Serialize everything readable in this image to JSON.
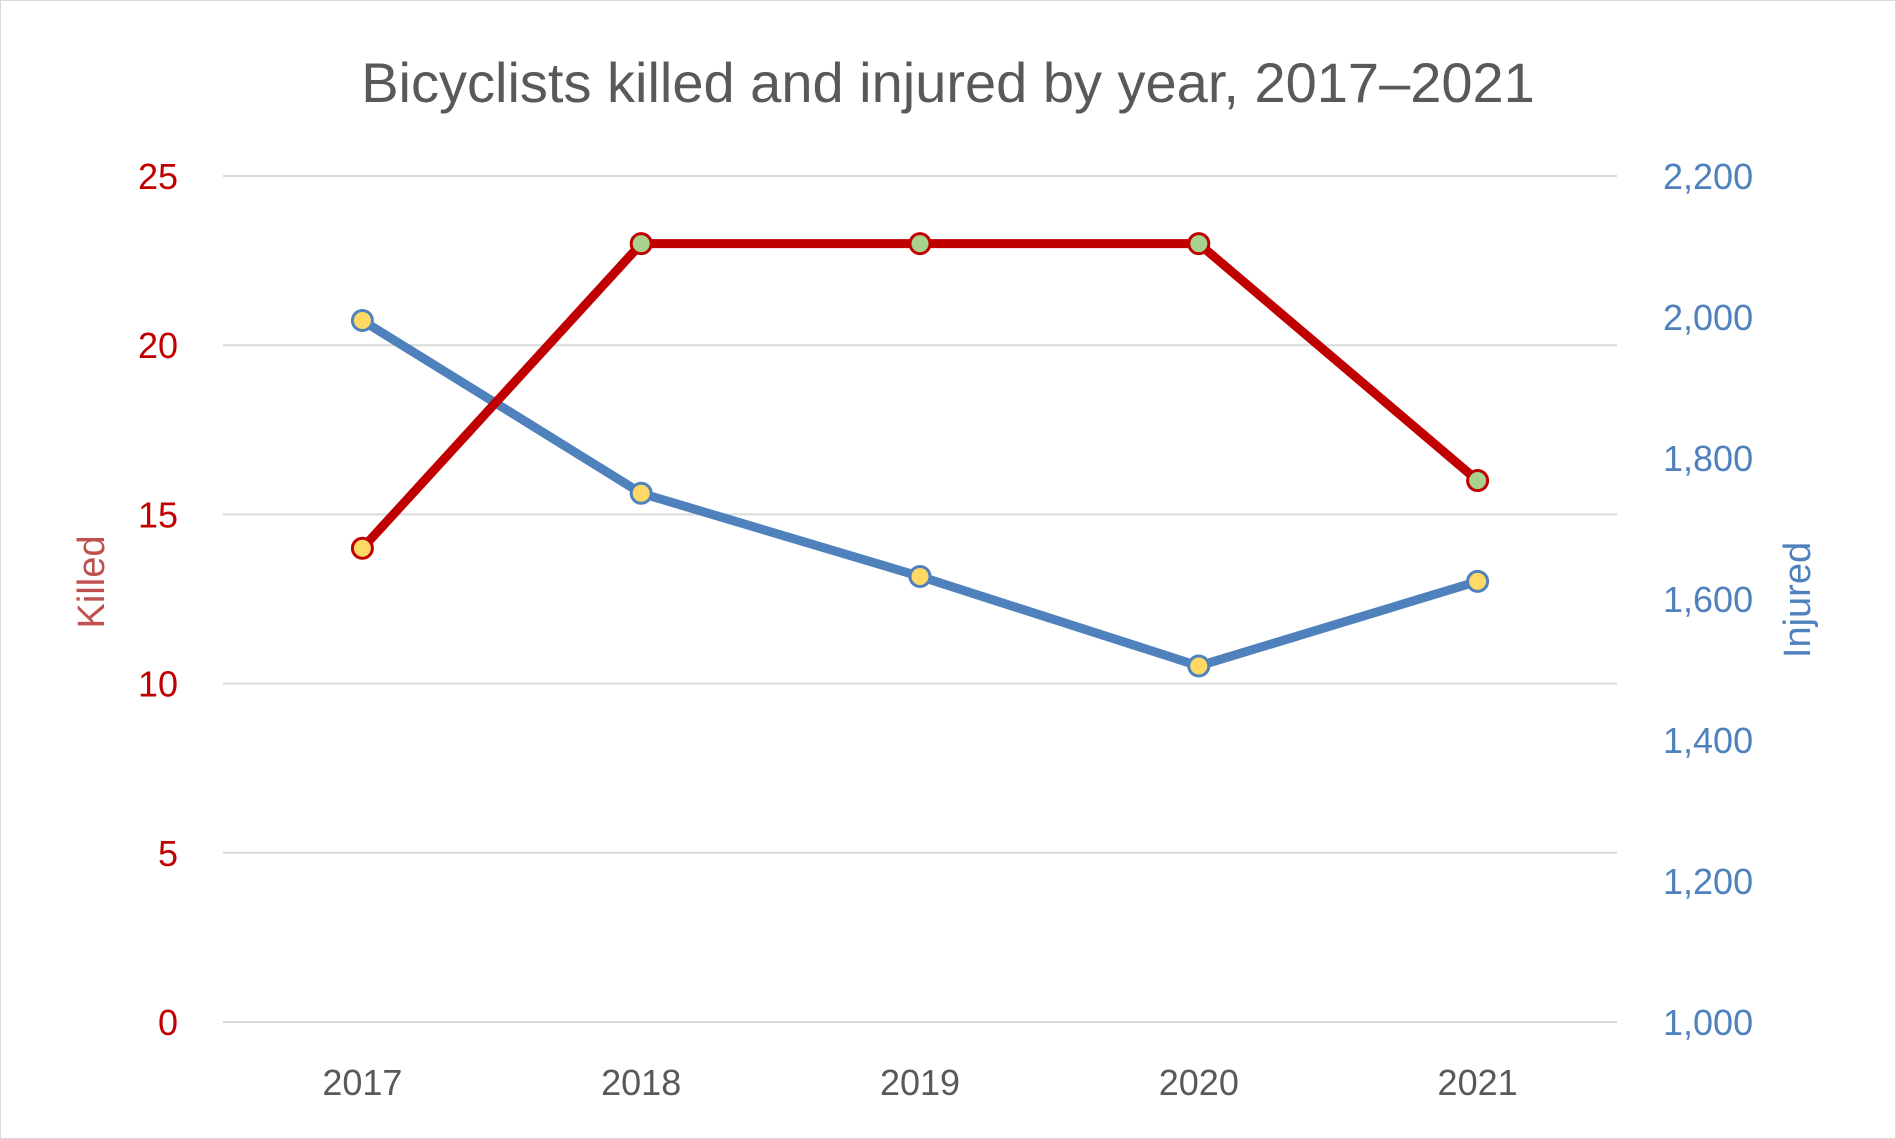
{
  "chart_data": {
    "type": "line",
    "title": "Bicyclists killed and injured by year, 2017–2021",
    "categories": [
      "2017",
      "2018",
      "2019",
      "2020",
      "2021"
    ],
    "y_left": {
      "label": "Killed",
      "range": [
        0,
        25
      ],
      "ticks": [
        0,
        5,
        10,
        15,
        20,
        25
      ],
      "tick_labels": [
        "0",
        "5",
        "10",
        "15",
        "20",
        "25"
      ],
      "color": "#c00000"
    },
    "y_right": {
      "label": "Injured",
      "range": [
        1000,
        2200
      ],
      "ticks": [
        1000,
        1200,
        1400,
        1600,
        1800,
        2000,
        2200
      ],
      "tick_labels": [
        "1,000",
        "1,200",
        "1,400",
        "1,600",
        "1,800",
        "2,000",
        "2,200"
      ],
      "color": "#4f81bd"
    },
    "series": [
      {
        "axis": "left",
        "values": [
          14,
          23,
          23,
          23,
          16
        ],
        "color": "#c00000",
        "marker_fills": [
          "#ffd966",
          "#a9d18e",
          "#a9d18e",
          "#a9d18e",
          "#a9d18e"
        ]
      },
      {
        "axis": "right",
        "values": [
          1995,
          1750,
          1632,
          1505,
          1625
        ],
        "color": "#4f81bd",
        "marker_fills": [
          "#ffd966",
          "#ffd966",
          "#ffd966",
          "#ffd966",
          "#ffd966"
        ]
      }
    ],
    "grid": true,
    "legend": "none"
  }
}
